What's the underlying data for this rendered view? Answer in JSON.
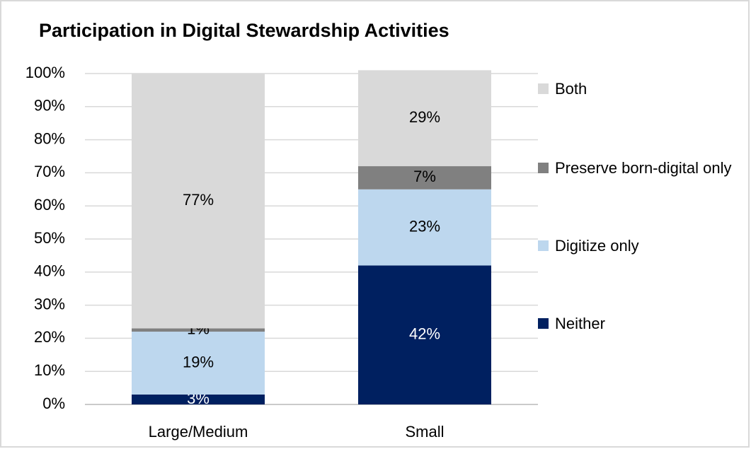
{
  "chart_data": {
    "type": "stacked_bar",
    "title": "Participation in Digital Stewardship Activities",
    "categories": [
      "Large/Medium",
      "Small"
    ],
    "series": [
      {
        "name": "Neither",
        "color": "#002060",
        "values": [
          3,
          42
        ],
        "value_labels": [
          "3%",
          "42%"
        ]
      },
      {
        "name": "Digitize only",
        "color": "#bdd7ee",
        "values": [
          19,
          23
        ],
        "value_labels": [
          "19%",
          "23%"
        ]
      },
      {
        "name": "Preserve born-digital only",
        "color": "#808080",
        "values": [
          1,
          7
        ],
        "value_labels": [
          "1%",
          "7%"
        ]
      },
      {
        "name": "Both",
        "color": "#d9d9d9",
        "values": [
          77,
          29
        ],
        "value_labels": [
          "77%",
          "29%"
        ]
      }
    ],
    "ylim": [
      0,
      100
    ],
    "yticks": [
      {
        "value": 0,
        "label": "0%"
      },
      {
        "value": 10,
        "label": "10%"
      },
      {
        "value": 20,
        "label": "20%"
      },
      {
        "value": 30,
        "label": "30%"
      },
      {
        "value": 40,
        "label": "40%"
      },
      {
        "value": 50,
        "label": "50%"
      },
      {
        "value": 60,
        "label": "60%"
      },
      {
        "value": 70,
        "label": "70%"
      },
      {
        "value": 80,
        "label": "80%"
      },
      {
        "value": 90,
        "label": "90%"
      },
      {
        "value": 100,
        "label": "100%"
      }
    ],
    "grid": true,
    "legend": "right"
  }
}
